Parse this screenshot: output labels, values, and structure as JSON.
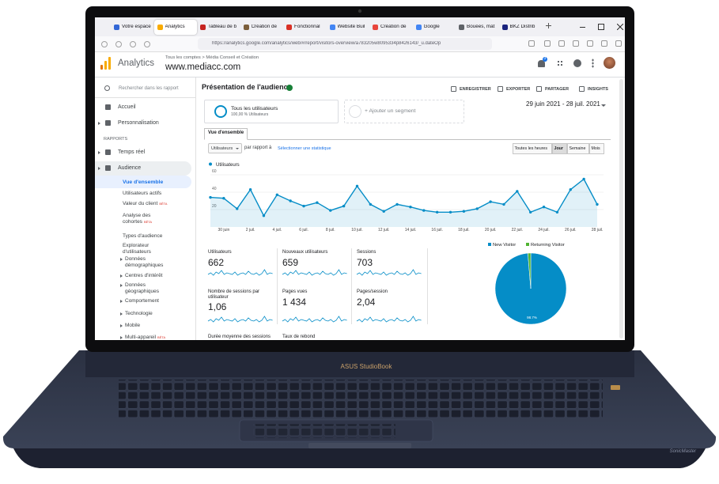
{
  "browser": {
    "tabs": [
      "Votre espace",
      "Analytics",
      "Tableau de b",
      "Création de",
      "Fonctionnal",
      "Website Buil",
      "Création de",
      "Google",
      "Bouées, mat",
      "BKZ Distrib"
    ],
    "url": "https://analytics.google.com/analytics/web/#/report/visitors-overview/a783205w8095334p8426143/_u.dateOp"
  },
  "header": {
    "app": "Analytics",
    "breadcrumb": "Tous les comptes > Média Conseil et Création",
    "property": "www.mediacc.com",
    "notifications": 3
  },
  "sidebar": {
    "search": "Rechercher dans les rapport",
    "items": [
      {
        "label": "Accueil"
      },
      {
        "label": "Personnalisation"
      },
      {
        "label": "RAPPORTS"
      },
      {
        "label": "Temps réel"
      },
      {
        "label": "Audience"
      },
      {
        "label": "Vue d'ensemble"
      },
      {
        "label": "Utilisateurs actifs"
      },
      {
        "label": "Valeur du client",
        "badge": "BÊTA"
      },
      {
        "label": "Analyse des cohortes",
        "badge": "BÊTA"
      },
      {
        "label": "Types d'audience"
      },
      {
        "label": "Explorateur d'utilisateurs"
      },
      {
        "label": "Données démographiques"
      },
      {
        "label": "Centres d'intérêt"
      },
      {
        "label": "Données géographiques"
      },
      {
        "label": "Comportement"
      },
      {
        "label": "Technologie"
      },
      {
        "label": "Mobile"
      },
      {
        "label": "Multi-appareil",
        "badge": "BÊTA"
      }
    ]
  },
  "report": {
    "title": "Présentation de l'audience",
    "actions": [
      "ENREGISTRER",
      "EXPORTER",
      "PARTAGER",
      "INSIGHTS"
    ],
    "segment": {
      "name": "Tous les utilisateurs",
      "detail": "100,00 % Utilisateurs"
    },
    "add_segment": "+ Ajouter un segment",
    "date_range": "29 juin 2021 - 28 juil. 2021",
    "tab": "Vue d'ensemble",
    "metric_select": "Utilisateurs",
    "compare": "par rapport à",
    "compare_link": "Sélectionner une statistique",
    "granularity": [
      "Toutes les heures",
      "Jour",
      "Semaine",
      "Mois"
    ],
    "metrics": [
      {
        "label": "Utilisateurs",
        "value": 662
      },
      {
        "label": "Nouveaux utilisateurs",
        "value": 659
      },
      {
        "label": "Sessions",
        "value": 703
      },
      {
        "label": "Nombre de sessions par utilisateur",
        "value": "1,06"
      },
      {
        "label": "Pages vues",
        "value": "1 434"
      },
      {
        "label": "Pages/session",
        "value": "2,04"
      },
      {
        "label": "Durée moyenne des sessions"
      },
      {
        "label": "Taux de rebond"
      }
    ]
  },
  "chart_data": [
    {
      "type": "line",
      "categories": [
        null,
        "30 juin",
        null,
        "2 juil.",
        null,
        "4 juil.",
        null,
        "6 juil.",
        null,
        "8 juil.",
        null,
        "10 juil.",
        null,
        "12 juil.",
        null,
        "14 juil.",
        null,
        "16 juil.",
        null,
        "18 juil.",
        null,
        "20 juil.",
        null,
        "22 juil.",
        null,
        "24 juil.",
        null,
        "26 juil.",
        null,
        "28 juil."
      ],
      "series": [
        {
          "name": "Utilisateurs",
          "color": "#058dc7",
          "values": [
            34,
            33,
            21,
            43,
            13,
            37,
            30,
            24,
            28,
            19,
            24,
            47,
            26,
            18,
            26,
            23,
            19,
            17,
            17,
            18,
            21,
            29,
            26,
            41,
            17,
            23,
            17,
            43,
            55,
            26
          ]
        }
      ],
      "ylim": [
        0,
        70
      ],
      "yticks": [
        20,
        40,
        60
      ],
      "grid": true
    },
    {
      "type": "pie",
      "categories": [
        "New Visitor",
        "Returning Visitor"
      ],
      "values": [
        98.7,
        1.3
      ],
      "value_labels": [
        "98.7%",
        null
      ],
      "colors": [
        "#058dc7",
        "#50b432"
      ]
    }
  ],
  "device": {
    "brand": "ASUS StudioBook",
    "audio": "SonicMaster"
  }
}
